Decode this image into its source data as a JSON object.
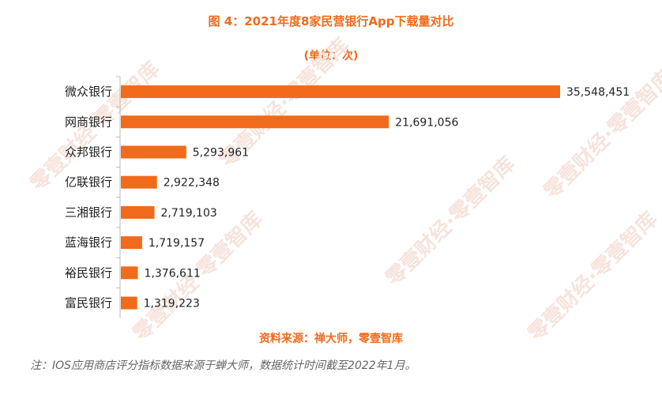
{
  "colors": {
    "accent": "#f26a1b",
    "text": "#222222",
    "note": "#666666",
    "axis": "#bbbbbb"
  },
  "chart_data": {
    "type": "bar",
    "orientation": "horizontal",
    "title": "图 4：2021年度8家民营银行App下载量对比",
    "subtitle": "(单位：次)",
    "categories": [
      "微众银行",
      "网商银行",
      "众邦银行",
      "亿联银行",
      "三湘银行",
      "蓝海银行",
      "裕民银行",
      "富民银行"
    ],
    "values": [
      35548451,
      21691056,
      5293961,
      2922348,
      2719103,
      1719157,
      1376611,
      1319223
    ],
    "data_labels": [
      "35,548,451",
      "21,691,056",
      "5,293,961",
      "2,922,348",
      "2,719,103",
      "1,719,157",
      "1,376,611",
      "1,319,223"
    ],
    "xlim": [
      0,
      35548451
    ],
    "grid": false
  },
  "source": "资料来源：禅大师，零壹智库",
  "note": "注：IOS应用商店评分指标数据来源于蝉大师，数据统计时间截至2022年1月。",
  "watermark": "零壹财经·零壹智库"
}
